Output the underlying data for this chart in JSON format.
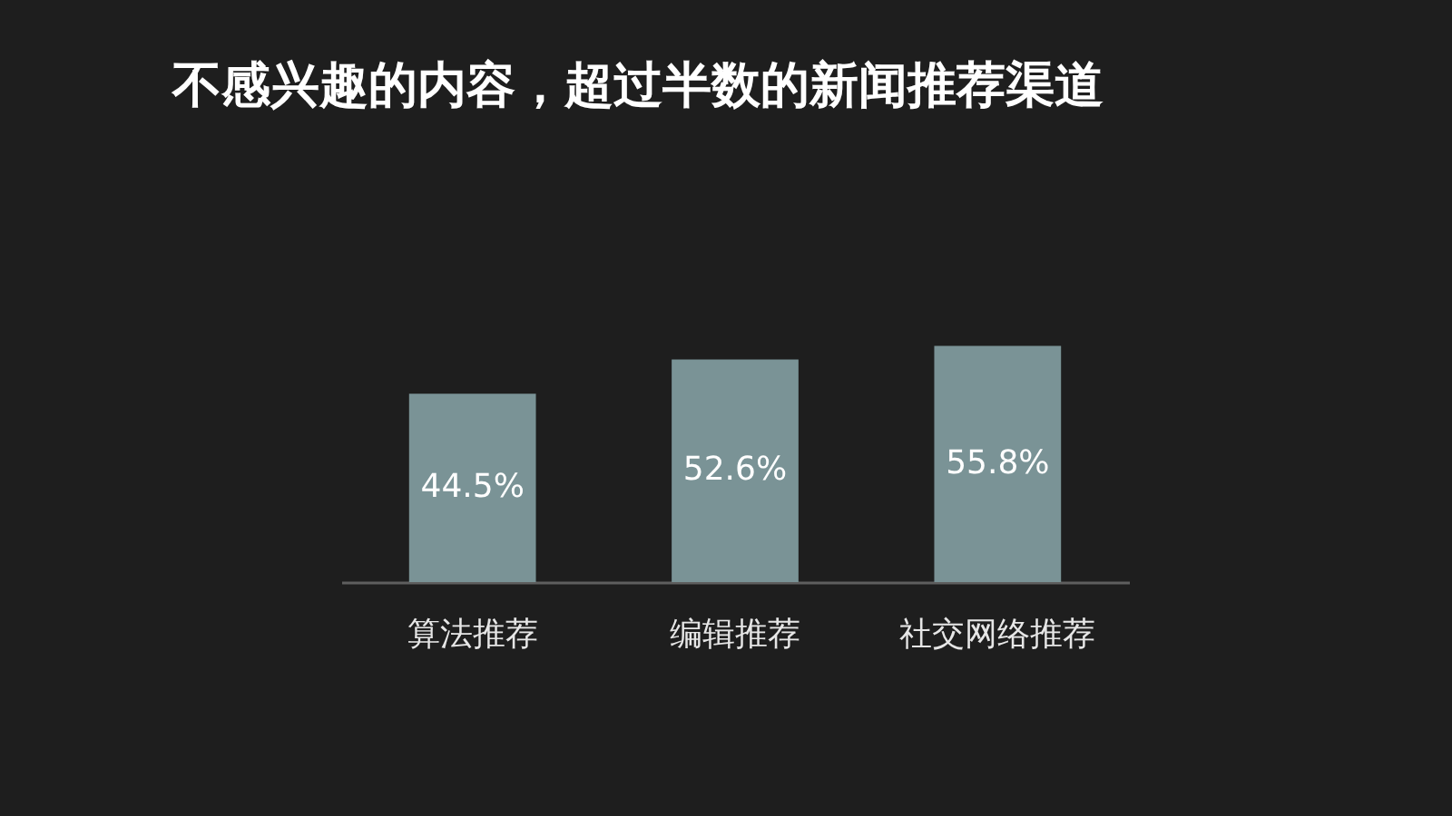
{
  "chart_data": {
    "type": "bar",
    "title": "不感兴趣的内容，超过半数的新闻推荐渠道",
    "categories": [
      "算法推荐",
      "编辑推荐",
      "社交网络推荐"
    ],
    "values": [
      44.5,
      52.6,
      55.8
    ],
    "value_labels": [
      "44.5%",
      "52.6%",
      "55.8%"
    ],
    "color": "#7a9396",
    "tick_labels": "x"
  }
}
